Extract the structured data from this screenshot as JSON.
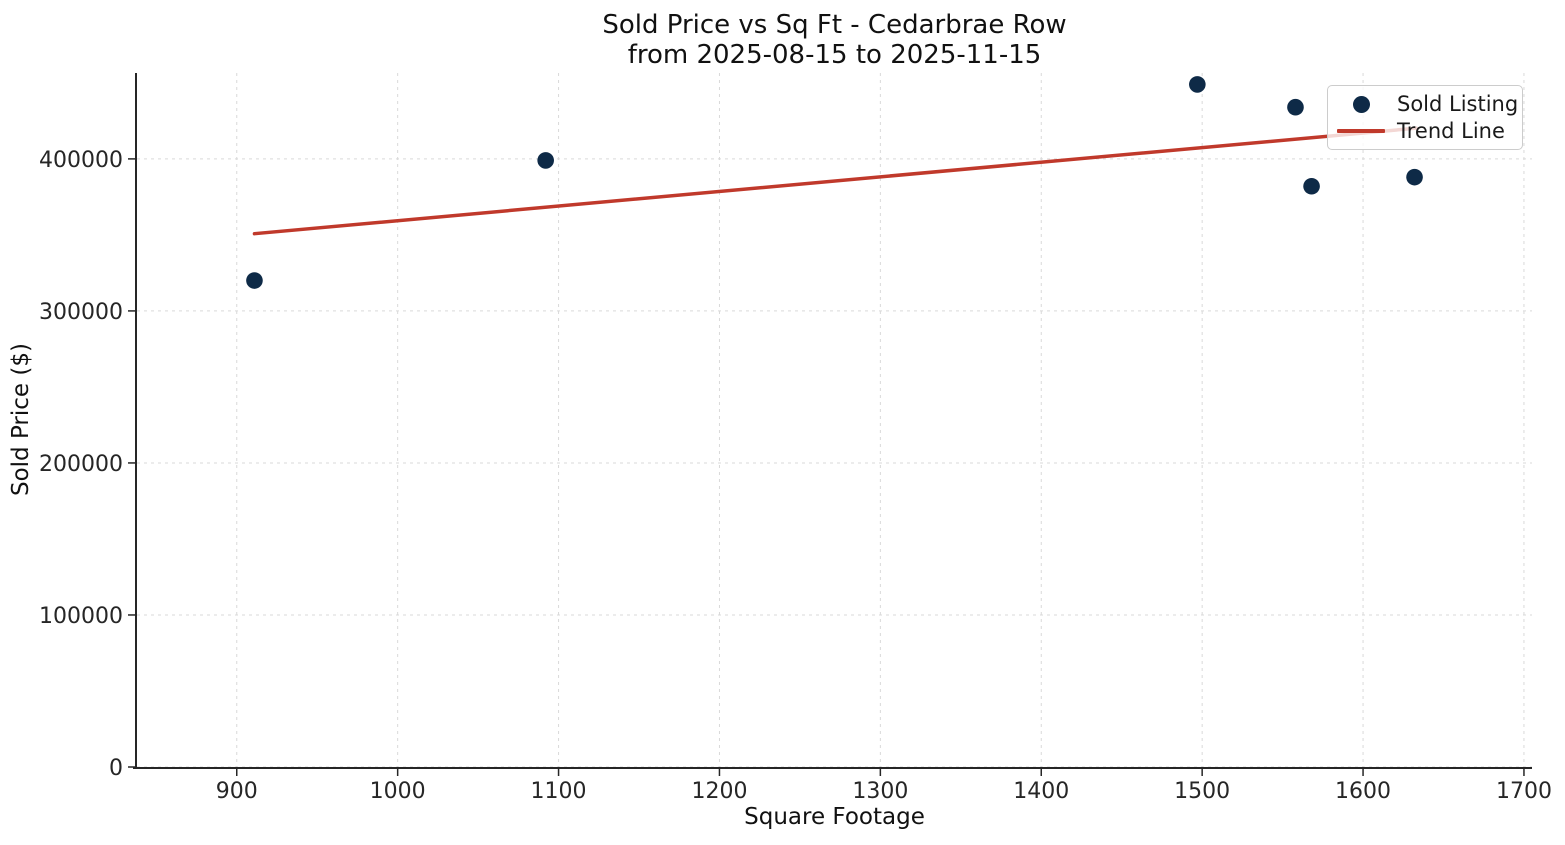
{
  "chart_data": {
    "type": "scatter",
    "title": "Sold Price vs Sq Ft - Cedarbrae Row",
    "subtitle": "from 2025-08-15 to 2025-11-15",
    "xlabel": "Square Footage",
    "ylabel": "Sold Price ($)",
    "xlim": [
      838,
      1705
    ],
    "ylim": [
      0,
      456500
    ],
    "xticks": [
      900,
      1000,
      1100,
      1200,
      1300,
      1400,
      1500,
      1600,
      1700
    ],
    "yticks": [
      0,
      100000,
      200000,
      300000,
      400000
    ],
    "grid": true,
    "grid_style": "dashed",
    "series": [
      {
        "name": "Sold Listing",
        "type": "scatter",
        "points": [
          {
            "sqft": 911,
            "price": 320000
          },
          {
            "sqft": 1092,
            "price": 399000
          },
          {
            "sqft": 1497,
            "price": 449000
          },
          {
            "sqft": 1558,
            "price": 434000
          },
          {
            "sqft": 1568,
            "price": 382000
          },
          {
            "sqft": 1632,
            "price": 388000
          }
        ]
      },
      {
        "name": "Trend Line",
        "type": "line",
        "x": [
          911,
          1633
        ],
        "y": [
          350800,
          420200
        ]
      }
    ],
    "legend": {
      "position": "upper right",
      "items": [
        {
          "label": "Sold Listing",
          "marker": "dot"
        },
        {
          "label": "Trend Line",
          "marker": "line"
        }
      ]
    },
    "colors": {
      "point": "#0e2a47",
      "trend": "#c0392b",
      "grid": "#d9d9d9",
      "axis": "#262626",
      "tick_text": "#262626",
      "legend_border": "#cccccc"
    }
  }
}
